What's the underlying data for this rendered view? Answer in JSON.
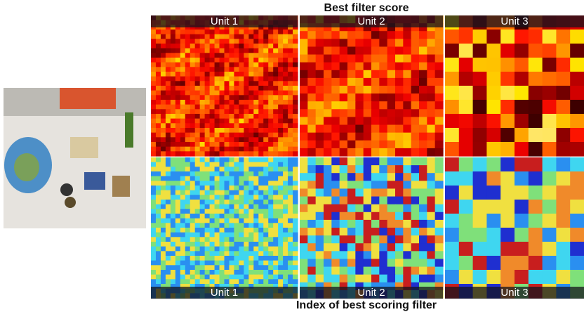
{
  "header": {
    "title": "Best filter score"
  },
  "top_row": {
    "labels": [
      "Unit 1",
      "Unit 2",
      "Unit 3"
    ]
  },
  "bottom_row": {
    "labels": [
      "Unit 1",
      "Unit 2",
      "Unit 3"
    ]
  },
  "footer": {
    "title": "Index of best scoring filter"
  }
}
